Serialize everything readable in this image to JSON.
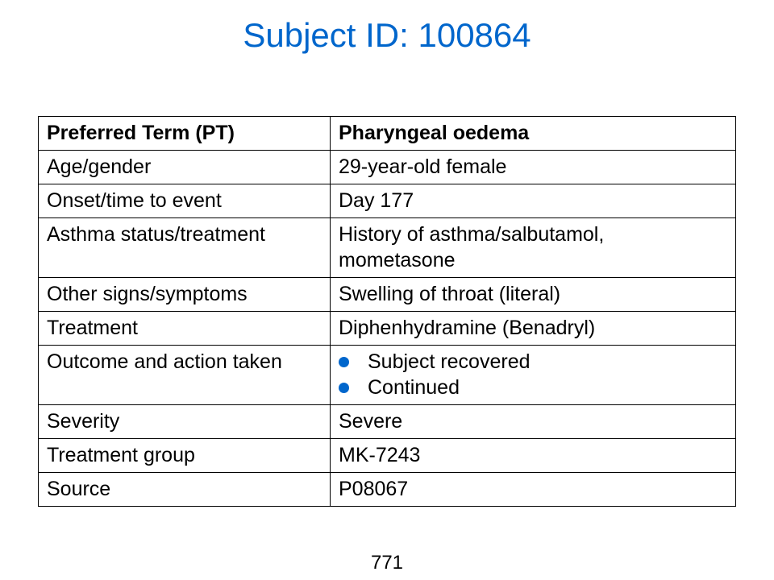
{
  "title": "Subject ID: 100864",
  "table": {
    "header": {
      "label": "Preferred Term (PT)",
      "value": "Pharyngeal oedema"
    },
    "rows": [
      {
        "label": "Age/gender",
        "value": "29-year-old female"
      },
      {
        "label": "Onset/time to event",
        "value": "Day 177"
      },
      {
        "label": "Asthma status/treatment",
        "value": "History of asthma/salbutamol, mometasone"
      },
      {
        "label": "Other signs/symptoms",
        "value": "Swelling of throat (literal)"
      },
      {
        "label": "Treatment",
        "value": "Diphenhydramine (Benadryl)"
      },
      {
        "label": "Outcome and action taken",
        "bullets": [
          "Subject recovered",
          "Continued"
        ]
      },
      {
        "label": "Severity",
        "value": "Severe"
      },
      {
        "label": "Treatment group",
        "value": "MK-7243"
      },
      {
        "label": "Source",
        "value": "P08067"
      }
    ]
  },
  "page_number": "771",
  "colors": {
    "title": "#0066cc",
    "bullet": "#0066cc",
    "border": "#000000"
  }
}
